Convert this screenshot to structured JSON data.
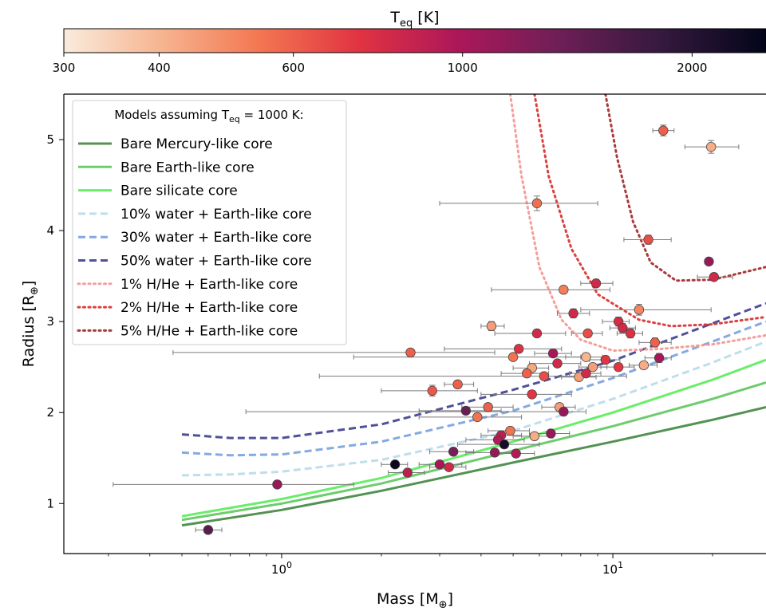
{
  "chart_data": {
    "type": "scatter",
    "colorbar": {
      "label_main": "T",
      "label_sub": "eq",
      "label_unit": " [K]",
      "range": [
        300,
        2500
      ],
      "scale": "log",
      "ticks": [
        300,
        400,
        600,
        1000,
        2000
      ],
      "tick_labels": [
        "300",
        "400",
        "600",
        "1000",
        "2000"
      ],
      "colormap": "rocket_r",
      "color_stops": [
        {
          "t": 0.0,
          "color": "#faebdd"
        },
        {
          "t": 0.14,
          "color": "#f6b48f"
        },
        {
          "t": 0.28,
          "color": "#f37651"
        },
        {
          "t": 0.42,
          "color": "#e13342"
        },
        {
          "t": 0.56,
          "color": "#ad1759"
        },
        {
          "t": 0.7,
          "color": "#701f57"
        },
        {
          "t": 0.85,
          "color": "#35193e"
        },
        {
          "t": 1.0,
          "color": "#03051a"
        }
      ]
    },
    "xaxis": {
      "label_main": "Mass [M",
      "label_sub": "⊕",
      "label_end": "]",
      "scale": "log",
      "range": [
        0.22,
        29
      ],
      "ticks": [
        {
          "value": 1,
          "base": "10",
          "exp": "0"
        },
        {
          "value": 10,
          "base": "10",
          "exp": "1"
        }
      ]
    },
    "yaxis": {
      "label_main": "Radius [R",
      "label_sub": "⊕",
      "label_end": "]",
      "range": [
        0.45,
        5.5
      ],
      "ticks": [
        1,
        2,
        3,
        4,
        5
      ]
    },
    "legend": {
      "position": "upper-left",
      "title_main": "Models assuming T",
      "title_sub": "eq",
      "title_end": " = 1000 K:",
      "entries": [
        "Bare Mercury-like core",
        "Bare Earth-like core",
        "Bare silicate core",
        "10% water + Earth-like core",
        "30% water + Earth-like core",
        "50% water + Earth-like core",
        "1% H/He + Earth-like core",
        "2% H/He + Earth-like core",
        "5% H/He + Earth-like core"
      ]
    },
    "model_curves": [
      {
        "name": "Bare Mercury-like core",
        "color": "#1a6e1a",
        "dash": "solid",
        "opacity": 0.75,
        "points": [
          [
            0.5,
            0.76
          ],
          [
            1,
            0.93
          ],
          [
            2,
            1.14
          ],
          [
            5,
            1.45
          ],
          [
            10,
            1.68
          ],
          [
            20,
            1.92
          ],
          [
            29,
            2.06
          ]
        ]
      },
      {
        "name": "Bare Earth-like core",
        "color": "#3cbb3c",
        "dash": "solid",
        "opacity": 0.75,
        "points": [
          [
            0.5,
            0.82
          ],
          [
            1,
            1.0
          ],
          [
            2,
            1.22
          ],
          [
            5,
            1.58
          ],
          [
            10,
            1.85
          ],
          [
            20,
            2.15
          ],
          [
            29,
            2.33
          ]
        ]
      },
      {
        "name": "Bare silicate core",
        "color": "#35e835",
        "dash": "solid",
        "opacity": 0.75,
        "points": [
          [
            0.5,
            0.86
          ],
          [
            1,
            1.05
          ],
          [
            2,
            1.28
          ],
          [
            5,
            1.68
          ],
          [
            10,
            2.0
          ],
          [
            20,
            2.36
          ],
          [
            29,
            2.58
          ]
        ]
      },
      {
        "name": "10% water + Earth-like core",
        "color": "#a9d3e6",
        "dash": "dashed",
        "opacity": 0.75,
        "points": [
          [
            0.5,
            1.31
          ],
          [
            0.7,
            1.32
          ],
          [
            1,
            1.35
          ],
          [
            2,
            1.48
          ],
          [
            5,
            1.8
          ],
          [
            10,
            2.15
          ],
          [
            20,
            2.55
          ],
          [
            29,
            2.78
          ]
        ]
      },
      {
        "name": "30% water + Earth-like core",
        "color": "#5b8ed6",
        "dash": "dashed",
        "opacity": 0.75,
        "points": [
          [
            0.5,
            1.56
          ],
          [
            0.7,
            1.53
          ],
          [
            1,
            1.54
          ],
          [
            2,
            1.68
          ],
          [
            5,
            2.02
          ],
          [
            10,
            2.38
          ],
          [
            20,
            2.78
          ],
          [
            29,
            3.0
          ]
        ]
      },
      {
        "name": "50% water + Earth-like core",
        "color": "#15157a",
        "dash": "dashed",
        "opacity": 0.75,
        "points": [
          [
            0.5,
            1.76
          ],
          [
            0.7,
            1.72
          ],
          [
            1,
            1.72
          ],
          [
            2,
            1.87
          ],
          [
            5,
            2.25
          ],
          [
            10,
            2.57
          ],
          [
            20,
            2.98
          ],
          [
            29,
            3.2
          ]
        ]
      },
      {
        "name": "1% H/He + Earth-like core",
        "color": "#f4948f",
        "dash": "dotted",
        "opacity": 0.9,
        "points": [
          [
            4.9,
            5.5
          ],
          [
            5.3,
            4.6
          ],
          [
            6,
            3.6
          ],
          [
            7,
            3.02
          ],
          [
            8,
            2.8
          ],
          [
            10,
            2.68
          ],
          [
            14,
            2.7
          ],
          [
            20,
            2.75
          ],
          [
            29,
            2.85
          ]
        ]
      },
      {
        "name": "2% H/He + Earth-like core",
        "color": "#d92a2a",
        "dash": "dotted",
        "opacity": 0.9,
        "points": [
          [
            5.8,
            5.5
          ],
          [
            6.4,
            4.6
          ],
          [
            7.5,
            3.8
          ],
          [
            9,
            3.3
          ],
          [
            12,
            3.02
          ],
          [
            15,
            2.95
          ],
          [
            20,
            2.97
          ],
          [
            29,
            3.05
          ]
        ]
      },
      {
        "name": "5% H/He + Earth-like core",
        "color": "#a12525",
        "dash": "dotted",
        "opacity": 0.9,
        "points": [
          [
            9.5,
            5.5
          ],
          [
            10.3,
            4.8
          ],
          [
            11.5,
            4.1
          ],
          [
            13,
            3.65
          ],
          [
            15.5,
            3.45
          ],
          [
            20,
            3.46
          ],
          [
            29,
            3.6
          ]
        ]
      }
    ],
    "points": [
      {
        "mass": 14.2,
        "radius": 5.1,
        "mlo": 13.2,
        "mhi": 15.3,
        "rerr": 0.06,
        "teq": 600
      },
      {
        "mass": 19.8,
        "radius": 4.92,
        "mlo": 16.5,
        "mhi": 24.0,
        "rerr": 0.07,
        "teq": 420
      },
      {
        "mass": 5.9,
        "radius": 4.3,
        "mlo": 3.0,
        "mhi": 9.0,
        "rerr": 0.08,
        "teq": 560
      },
      {
        "mass": 12.8,
        "radius": 3.9,
        "mlo": 10.8,
        "mhi": 15.0,
        "rerr": 0.05,
        "teq": 650
      },
      {
        "mass": 19.5,
        "radius": 3.66,
        "mlo": 19.5,
        "mhi": 19.5,
        "rerr": 0.03,
        "teq": 1100
      },
      {
        "mass": 20.2,
        "radius": 3.49,
        "mlo": 18.0,
        "mhi": 23.0,
        "rerr": 0.04,
        "teq": 800
      },
      {
        "mass": 8.9,
        "radius": 3.42,
        "mlo": 8.0,
        "mhi": 10.0,
        "rerr": 0.04,
        "teq": 800
      },
      {
        "mass": 7.1,
        "radius": 3.35,
        "mlo": 4.3,
        "mhi": 9.8,
        "rerr": 0.04,
        "teq": 520
      },
      {
        "mass": 7.6,
        "radius": 3.09,
        "mlo": 6.8,
        "mhi": 8.5,
        "rerr": 0.05,
        "teq": 800
      },
      {
        "mass": 12.0,
        "radius": 3.13,
        "mlo": 8.0,
        "mhi": 19.8,
        "rerr": 0.06,
        "teq": 500
      },
      {
        "mass": 10.4,
        "radius": 3.0,
        "mlo": 9.3,
        "mhi": 11.2,
        "rerr": 0.05,
        "teq": 780
      },
      {
        "mass": 10.7,
        "radius": 2.93,
        "mlo": 9.8,
        "mhi": 11.7,
        "rerr": 0.05,
        "teq": 800
      },
      {
        "mass": 11.3,
        "radius": 2.87,
        "mlo": 10.3,
        "mhi": 12.3,
        "rerr": 0.05,
        "teq": 750
      },
      {
        "mass": 4.3,
        "radius": 2.95,
        "mlo": 4.0,
        "mhi": 4.7,
        "rerr": 0.05,
        "teq": 450
      },
      {
        "mass": 5.9,
        "radius": 2.87,
        "mlo": 4.4,
        "mhi": 7.2,
        "rerr": 0.04,
        "teq": 800
      },
      {
        "mass": 8.4,
        "radius": 2.87,
        "mlo": 7.5,
        "mhi": 9.3,
        "rerr": 0.03,
        "teq": 650
      },
      {
        "mass": 13.4,
        "radius": 2.77,
        "mlo": 12.0,
        "mhi": 15.0,
        "rerr": 0.05,
        "teq": 600
      },
      {
        "mass": 5.2,
        "radius": 2.7,
        "mlo": 3.1,
        "mhi": 7.0,
        "rerr": 0.04,
        "teq": 750
      },
      {
        "mass": 2.45,
        "radius": 2.66,
        "mlo": 0.47,
        "mhi": 4.4,
        "rerr": 0.04,
        "teq": 600
      },
      {
        "mass": 6.6,
        "radius": 2.65,
        "mlo": 5.8,
        "mhi": 7.5,
        "rerr": 0.04,
        "teq": 1000
      },
      {
        "mass": 5.0,
        "radius": 2.61,
        "mlo": 1.65,
        "mhi": 8.0,
        "rerr": 0.04,
        "teq": 550
      },
      {
        "mass": 8.3,
        "radius": 2.61,
        "mlo": 7.2,
        "mhi": 9.3,
        "rerr": 0.04,
        "teq": 400
      },
      {
        "mass": 9.5,
        "radius": 2.58,
        "mlo": 8.5,
        "mhi": 10.5,
        "rerr": 0.04,
        "teq": 720
      },
      {
        "mass": 13.8,
        "radius": 2.6,
        "mlo": 12.5,
        "mhi": 15.0,
        "rerr": 0.05,
        "teq": 1000
      },
      {
        "mass": 6.8,
        "radius": 2.54,
        "mlo": 5.6,
        "mhi": 8.0,
        "rerr": 0.04,
        "teq": 800
      },
      {
        "mass": 5.7,
        "radius": 2.49,
        "mlo": 5.0,
        "mhi": 6.4,
        "rerr": 0.04,
        "teq": 430
      },
      {
        "mass": 8.7,
        "radius": 2.5,
        "mlo": 7.9,
        "mhi": 9.6,
        "rerr": 0.04,
        "teq": 450
      },
      {
        "mass": 10.4,
        "radius": 2.5,
        "mlo": 9.2,
        "mhi": 11.6,
        "rerr": 0.04,
        "teq": 720
      },
      {
        "mass": 12.4,
        "radius": 2.52,
        "mlo": 11.2,
        "mhi": 13.6,
        "rerr": 0.04,
        "teq": 420
      },
      {
        "mass": 5.5,
        "radius": 2.43,
        "mlo": 4.6,
        "mhi": 6.4,
        "rerr": 0.04,
        "teq": 600
      },
      {
        "mass": 6.2,
        "radius": 2.4,
        "mlo": 1.3,
        "mhi": 11.0,
        "rerr": 0.04,
        "teq": 650
      },
      {
        "mass": 7.9,
        "radius": 2.39,
        "mlo": 7.0,
        "mhi": 8.9,
        "rerr": 0.04,
        "teq": 450
      },
      {
        "mass": 8.3,
        "radius": 2.43,
        "mlo": 7.4,
        "mhi": 9.2,
        "rerr": 0.04,
        "teq": 800
      },
      {
        "mass": 3.4,
        "radius": 2.31,
        "mlo": 3.1,
        "mhi": 3.8,
        "rerr": 0.04,
        "teq": 600
      },
      {
        "mass": 2.85,
        "radius": 2.24,
        "mlo": 2.0,
        "mhi": 3.9,
        "rerr": 0.06,
        "teq": 620
      },
      {
        "mass": 5.7,
        "radius": 2.2,
        "mlo": 4.0,
        "mhi": 7.5,
        "rerr": 0.04,
        "teq": 720
      },
      {
        "mass": 4.2,
        "radius": 2.06,
        "mlo": 3.5,
        "mhi": 5.0,
        "rerr": 0.04,
        "teq": 600
      },
      {
        "mass": 6.9,
        "radius": 2.06,
        "mlo": 6.1,
        "mhi": 7.7,
        "rerr": 0.04,
        "teq": 450
      },
      {
        "mass": 7.1,
        "radius": 2.01,
        "mlo": 0.78,
        "mhi": 8.3,
        "rerr": 0.04,
        "teq": 1100
      },
      {
        "mass": 3.6,
        "radius": 2.02,
        "mlo": 2.6,
        "mhi": 4.6,
        "rerr": 0.04,
        "teq": 1400
      },
      {
        "mass": 3.9,
        "radius": 1.95,
        "mlo": 2.6,
        "mhi": 5.3,
        "rerr": 0.04,
        "teq": 550
      },
      {
        "mass": 4.9,
        "radius": 1.8,
        "mlo": 4.2,
        "mhi": 5.6,
        "rerr": 0.04,
        "teq": 550
      },
      {
        "mass": 6.5,
        "radius": 1.77,
        "mlo": 5.6,
        "mhi": 7.4,
        "rerr": 0.04,
        "teq": 1100
      },
      {
        "mass": 4.6,
        "radius": 1.75,
        "mlo": 4.0,
        "mhi": 5.3,
        "rerr": 0.04,
        "teq": 900
      },
      {
        "mass": 5.8,
        "radius": 1.74,
        "mlo": 5.0,
        "mhi": 6.6,
        "rerr": 0.04,
        "teq": 420
      },
      {
        "mass": 4.5,
        "radius": 1.7,
        "mlo": 3.6,
        "mhi": 5.4,
        "rerr": 0.04,
        "teq": 950
      },
      {
        "mass": 4.7,
        "radius": 1.65,
        "mlo": 3.4,
        "mhi": 6.0,
        "rerr": 0.04,
        "teq": 2200
      },
      {
        "mass": 3.3,
        "radius": 1.57,
        "mlo": 2.8,
        "mhi": 3.8,
        "rerr": 0.04,
        "teq": 1300
      },
      {
        "mass": 4.4,
        "radius": 1.56,
        "mlo": 3.6,
        "mhi": 5.2,
        "rerr": 0.04,
        "teq": 1100
      },
      {
        "mass": 5.1,
        "radius": 1.55,
        "mlo": 4.4,
        "mhi": 5.8,
        "rerr": 0.04,
        "teq": 950
      },
      {
        "mass": 2.2,
        "radius": 1.43,
        "mlo": 2.0,
        "mhi": 2.4,
        "rerr": 0.03,
        "teq": 2400
      },
      {
        "mass": 3.0,
        "radius": 1.43,
        "mlo": 2.6,
        "mhi": 3.5,
        "rerr": 0.03,
        "teq": 1000
      },
      {
        "mass": 3.2,
        "radius": 1.4,
        "mlo": 2.8,
        "mhi": 3.6,
        "rerr": 0.03,
        "teq": 800
      },
      {
        "mass": 2.4,
        "radius": 1.34,
        "mlo": 2.1,
        "mhi": 2.7,
        "rerr": 0.03,
        "teq": 900
      },
      {
        "mass": 0.97,
        "radius": 1.21,
        "mlo": 0.31,
        "mhi": 1.65,
        "rerr": 0.03,
        "teq": 1100
      },
      {
        "mass": 0.6,
        "radius": 0.71,
        "mlo": 0.55,
        "mhi": 0.66,
        "rerr": 0.03,
        "teq": 1500
      }
    ]
  }
}
